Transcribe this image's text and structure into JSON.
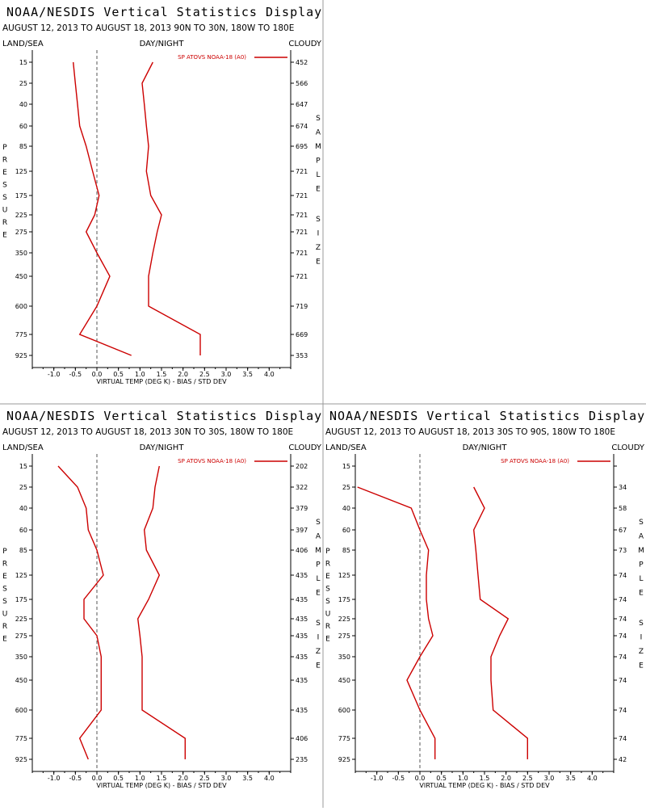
{
  "title": "NOAA/NESDIS Vertical Statistics Display",
  "colors": {
    "series": "#cc0000",
    "axis": "#000000",
    "divider": "#999999"
  },
  "chart_data": [
    {
      "type": "line",
      "title": "NOAA/NESDIS Vertical Statistics Display",
      "subtitle": "AUGUST 12, 2013 TO AUGUST 18, 2013 90N TO 30N, 180W TO 180E",
      "header_left": "LAND/SEA",
      "header_center": "DAY/NIGHT",
      "header_right": "CLOUDY",
      "xlabel": "VIRTUAL TEMP (DEG K) - BIAS / STD DEV",
      "ylabel": "PRESSURE",
      "y2label": "SAMPLE SIZE",
      "legend": "SP ATOVS NOAA-18 (A0)",
      "xlim": [
        -1.5,
        4.5
      ],
      "xticks": [
        "-1.0",
        "-0.5",
        "0.0",
        "0.5",
        "1.0",
        "1.5",
        "2.0",
        "2.5",
        "3.0",
        "3.5",
        "4.0"
      ],
      "levels": [
        "15",
        "25",
        "40",
        "60",
        "85",
        "125",
        "175",
        "225",
        "275",
        "350",
        "450",
        "600",
        "775",
        "925"
      ],
      "sample_size": [
        "452",
        "566",
        "647",
        "674",
        "695",
        "721",
        "721",
        "721",
        "721",
        "721",
        "721",
        "719",
        "669",
        "353"
      ],
      "series": [
        {
          "values": [
            -0.55,
            -0.5,
            -0.45,
            -0.4,
            -0.25,
            -0.1,
            0.05,
            -0.05,
            -0.25,
            0.0,
            0.3,
            0.0,
            -0.4,
            0.8
          ]
        },
        {
          "values": [
            1.3,
            1.05,
            1.1,
            1.15,
            1.2,
            1.15,
            1.25,
            1.5,
            1.4,
            1.3,
            1.2,
            1.2,
            2.4,
            2.4
          ]
        }
      ]
    },
    {
      "type": "line",
      "title": "NOAA/NESDIS Vertical Statistics Display",
      "subtitle": "AUGUST 12, 2013 TO AUGUST 18, 2013 30N TO 30S, 180W TO 180E",
      "header_left": "LAND/SEA",
      "header_center": "DAY/NIGHT",
      "header_right": "CLOUDY",
      "xlabel": "VIRTUAL TEMP (DEG K) - BIAS / STD DEV",
      "ylabel": "PRESSURE",
      "y2label": "SAMPLE SIZE",
      "legend": "SP ATOVS NOAA-18 (A0)",
      "xlim": [
        -1.5,
        4.5
      ],
      "xticks": [
        "-1.0",
        "-0.5",
        "0.0",
        "0.5",
        "1.0",
        "1.5",
        "2.0",
        "2.5",
        "3.0",
        "3.5",
        "4.0"
      ],
      "levels": [
        "15",
        "25",
        "40",
        "60",
        "85",
        "125",
        "175",
        "225",
        "275",
        "350",
        "450",
        "600",
        "775",
        "925"
      ],
      "sample_size": [
        "202",
        "322",
        "379",
        "397",
        "406",
        "435",
        "435",
        "435",
        "435",
        "435",
        "435",
        "435",
        "406",
        "235"
      ],
      "series": [
        {
          "values": [
            -0.9,
            -0.45,
            -0.25,
            -0.2,
            0.0,
            0.15,
            -0.3,
            -0.3,
            0.0,
            0.1,
            0.1,
            0.1,
            -0.4,
            -0.2
          ]
        },
        {
          "values": [
            1.45,
            1.35,
            1.3,
            1.1,
            1.15,
            1.45,
            1.2,
            0.95,
            1.0,
            1.05,
            1.05,
            1.05,
            2.05,
            2.05
          ]
        }
      ]
    },
    {
      "type": "line",
      "title": "NOAA/NESDIS Vertical Statistics Display",
      "subtitle": "AUGUST 12, 2013 TO AUGUST 18, 2013 30S TO 90S, 180W TO 180E",
      "header_left": "LAND/SEA",
      "header_center": "DAY/NIGHT",
      "header_right": "CLOUDY",
      "xlabel": "VIRTUAL TEMP (DEG K) - BIAS / STD DEV",
      "ylabel": "PRESSURE",
      "y2label": "SAMPLE SIZE",
      "legend": "SP ATOVS NOAA-18 (A0)",
      "xlim": [
        -1.5,
        4.5
      ],
      "xticks": [
        "-1.0",
        "-0.5",
        "0.0",
        "0.5",
        "1.0",
        "1.5",
        "2.0",
        "2.5",
        "3.0",
        "3.5",
        "4.0"
      ],
      "levels": [
        "15",
        "25",
        "40",
        "60",
        "85",
        "125",
        "175",
        "225",
        "275",
        "350",
        "450",
        "600",
        "775",
        "925"
      ],
      "sample_size": [
        "",
        "34",
        "58",
        "67",
        "73",
        "74",
        "74",
        "74",
        "74",
        "74",
        "74",
        "74",
        "74",
        "42"
      ],
      "series": [
        {
          "values": [
            null,
            -1.45,
            -0.2,
            0.0,
            0.2,
            0.15,
            0.15,
            0.2,
            0.3,
            0.0,
            -0.3,
            0.0,
            0.35,
            0.35
          ]
        },
        {
          "values": [
            null,
            1.25,
            1.5,
            1.25,
            1.3,
            1.35,
            1.4,
            2.05,
            1.85,
            1.65,
            1.65,
            1.7,
            2.5,
            2.5
          ]
        }
      ]
    }
  ]
}
